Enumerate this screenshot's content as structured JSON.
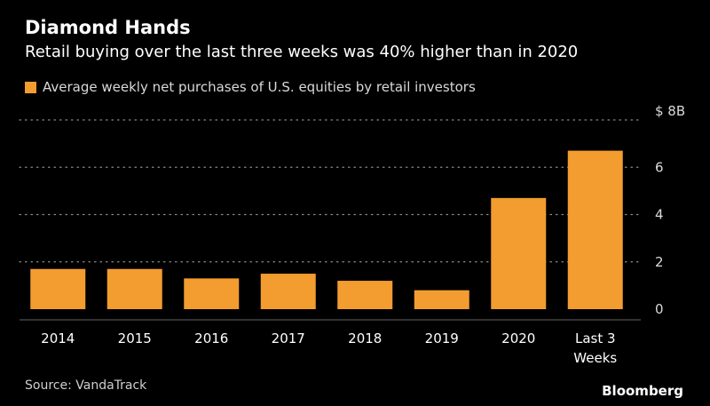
{
  "title": "Diamond Hands",
  "subtitle": "Retail buying over the last three weeks was 40% higher than in 2020",
  "legend": {
    "label": "Average weekly net purchases of U.S. equities by retail investors",
    "color": "#F39C2F"
  },
  "source": "Source: VandaTrack",
  "brand": "Bloomberg",
  "chart_data": {
    "type": "bar",
    "categories": [
      "2014",
      "2015",
      "2016",
      "2017",
      "2018",
      "2019",
      "2020",
      "Last 3 Weeks"
    ],
    "category_lines": [
      [
        "2014"
      ],
      [
        "2015"
      ],
      [
        "2016"
      ],
      [
        "2017"
      ],
      [
        "2018"
      ],
      [
        "2019"
      ],
      [
        "2020"
      ],
      [
        "Last 3",
        "Weeks"
      ]
    ],
    "series": [
      {
        "values": [
          1.7,
          1.7,
          1.3,
          1.5,
          1.2,
          0.8,
          4.7,
          6.7
        ]
      }
    ],
    "ylim": [
      0,
      8
    ],
    "y_ticks": [
      0,
      2,
      4,
      6,
      8
    ],
    "y_tick_labels": [
      "0",
      "2",
      "4",
      "6",
      "$ 8B"
    ],
    "ylabel": "",
    "xlabel": "",
    "grid": true,
    "axis_side": "right",
    "bar_color": "#F39C2F",
    "grid_color": "#8a8a8a",
    "text_color": "#ffffff",
    "tick_color": "#d9d9d9"
  }
}
